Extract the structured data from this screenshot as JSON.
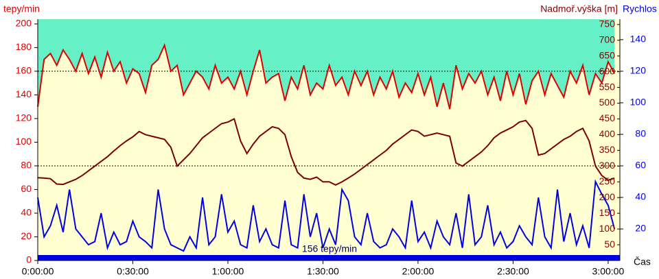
{
  "chart_data": {
    "type": "line",
    "ylabel": "tepy/min",
    "y2label": "Nadmoř.výška [m]",
    "y3label": "Rychlos",
    "xlabel": "Čas",
    "annotation": "156 tepy/min",
    "xlim": [
      0,
      183.7
    ],
    "xticks": [
      {
        "value": 0,
        "label": "0:00:00"
      },
      {
        "value": 30,
        "label": "0:30:00"
      },
      {
        "value": 60,
        "label": "1:00:00"
      },
      {
        "value": 90,
        "label": "1:30:00"
      },
      {
        "value": 120,
        "label": "2:00:00"
      },
      {
        "value": 150,
        "label": "2:30:00"
      },
      {
        "value": 180,
        "label": "3:00:00"
      }
    ],
    "ylim": [
      0,
      204
    ],
    "yticks": [
      0,
      20,
      40,
      60,
      80,
      100,
      120,
      140,
      160,
      180,
      200
    ],
    "y2lim": [
      0,
      767
    ],
    "y2ticks": [
      50,
      100,
      150,
      200,
      250,
      300,
      350,
      400,
      450,
      500,
      550,
      600,
      650,
      700,
      750
    ],
    "y3lim": [
      0,
      153
    ],
    "y3ticks": [
      20,
      40,
      60,
      80,
      100,
      120,
      140
    ],
    "hlines": [
      160,
      80
    ],
    "x": [
      0,
      2,
      4,
      6,
      8,
      10,
      12,
      14,
      16,
      18,
      20,
      22,
      24,
      26,
      28,
      30,
      32,
      34,
      36,
      38,
      40,
      42,
      44,
      46,
      48,
      50,
      52,
      54,
      56,
      58,
      60,
      62,
      64,
      66,
      68,
      70,
      72,
      74,
      76,
      78,
      80,
      82,
      84,
      86,
      88,
      90,
      92,
      94,
      96,
      98,
      100,
      102,
      104,
      106,
      108,
      110,
      112,
      114,
      116,
      118,
      120,
      122,
      124,
      126,
      128,
      130,
      132,
      134,
      136,
      138,
      140,
      142,
      144,
      146,
      148,
      150,
      152,
      154,
      156,
      158,
      160,
      162,
      164,
      166,
      168,
      170,
      172,
      174,
      176,
      178,
      180,
      182
    ],
    "series": [
      {
        "color": "#7a0000",
        "axis": "y2",
        "values": [
          263,
          262,
          260,
          243,
          242,
          250,
          258,
          270,
          285,
          300,
          315,
          330,
          348,
          365,
          380,
          393,
          410,
          400,
          395,
          390,
          385,
          360,
          300,
          320,
          340,
          365,
          390,
          405,
          420,
          435,
          440,
          450,
          380,
          340,
          370,
          395,
          410,
          425,
          420,
          400,
          330,
          280,
          262,
          258,
          265,
          250,
          250,
          240,
          250,
          262,
          275,
          290,
          305,
          320,
          335,
          350,
          370,
          385,
          400,
          415,
          410,
          395,
          400,
          405,
          400,
          395,
          310,
          300,
          315,
          330,
          345,
          365,
          390,
          405,
          415,
          425,
          440,
          445,
          420,
          335,
          340,
          355,
          370,
          385,
          395,
          410,
          420,
          380,
          300,
          270,
          255,
          262
        ]
      },
      {
        "color": "#0000e0",
        "axis": "y3",
        "values": [
          40,
          15,
          22,
          35,
          18,
          45,
          20,
          15,
          10,
          12,
          30,
          8,
          18,
          10,
          12,
          25,
          15,
          12,
          8,
          45,
          20,
          10,
          8,
          6,
          15,
          8,
          40,
          10,
          15,
          42,
          18,
          25,
          10,
          8,
          35,
          12,
          20,
          10,
          8,
          38,
          10,
          8,
          42,
          15,
          30,
          8,
          20,
          10,
          45,
          38,
          15,
          10,
          30,
          12,
          8,
          10,
          20,
          15,
          8,
          38,
          12,
          18,
          8,
          25,
          15,
          10,
          30,
          8,
          42,
          10,
          15,
          35,
          10,
          18,
          8,
          12,
          22,
          15,
          10,
          40,
          15,
          8,
          45,
          12,
          30,
          10,
          22,
          8,
          50,
          42,
          35,
          20
        ]
      },
      {
        "color": "#e00000",
        "axis": "y",
        "values": [
          130,
          170,
          175,
          165,
          178,
          170,
          160,
          175,
          158,
          172,
          155,
          176,
          160,
          168,
          150,
          162,
          158,
          142,
          165,
          170,
          182,
          160,
          165,
          140,
          150,
          160,
          155,
          145,
          165,
          150,
          155,
          145,
          160,
          140,
          160,
          178,
          150,
          155,
          158,
          135,
          155,
          145,
          165,
          140,
          150,
          145,
          165,
          148,
          155,
          140,
          160,
          148,
          160,
          140,
          155,
          145,
          160,
          138,
          150,
          142,
          158,
          140,
          155,
          130,
          150,
          128,
          165,
          145,
          158,
          150,
          160,
          140,
          155,
          135,
          160,
          140,
          158,
          132,
          152,
          160,
          140,
          158,
          148,
          138,
          160,
          150,
          165,
          140,
          158,
          150,
          168,
          158
        ]
      }
    ]
  }
}
